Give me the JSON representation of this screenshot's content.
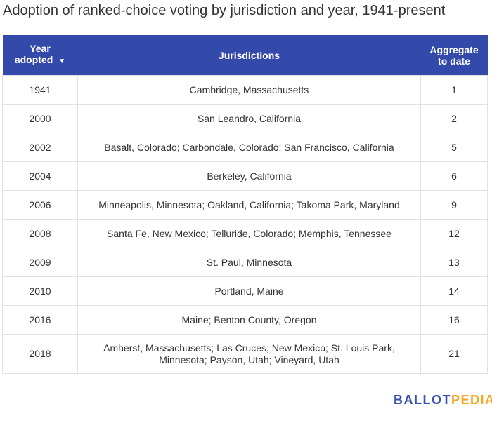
{
  "chart_data": {
    "type": "table",
    "title": "Adoption of ranked-choice voting by jurisdiction and year, 1941-present",
    "columns": {
      "year_line1": "Year",
      "year_line2": "adopted",
      "sort_indicator": "▼",
      "jurisdictions": "Jurisdictions",
      "aggregate_line1": "Aggregate",
      "aggregate_line2": "to date"
    },
    "rows": [
      {
        "year": "1941",
        "jurisdictions": "Cambridge, Massachusetts",
        "aggregate": "1"
      },
      {
        "year": "2000",
        "jurisdictions": "San Leandro, California",
        "aggregate": "2"
      },
      {
        "year": "2002",
        "jurisdictions": "Basalt, Colorado; Carbondale, Colorado; San Francisco, California",
        "aggregate": "5"
      },
      {
        "year": "2004",
        "jurisdictions": "Berkeley, California",
        "aggregate": "6"
      },
      {
        "year": "2006",
        "jurisdictions": "Minneapolis, Minnesota; Oakland, California; Takoma Park, Maryland",
        "aggregate": "9"
      },
      {
        "year": "2008",
        "jurisdictions": "Santa Fe, New Mexico; Telluride, Colorado; Memphis, Tennessee",
        "aggregate": "12"
      },
      {
        "year": "2009",
        "jurisdictions": "St. Paul, Minnesota",
        "aggregate": "13"
      },
      {
        "year": "2010",
        "jurisdictions": "Portland, Maine",
        "aggregate": "14"
      },
      {
        "year": "2016",
        "jurisdictions": "Maine; Benton County, Oregon",
        "aggregate": "16"
      },
      {
        "year": "2018",
        "jurisdictions": "Amherst, Massachusetts; Las Cruces, New Mexico; St. Louis Park, Minnesota; Payson, Utah; Vineyard, Utah",
        "aggregate": "21"
      }
    ]
  },
  "logo": {
    "part1": "BALLOT",
    "part2": "PEDIA"
  },
  "colors": {
    "header": "#334aab",
    "logo_blue": "#3a4fb0",
    "logo_orange": "#f5a623"
  }
}
